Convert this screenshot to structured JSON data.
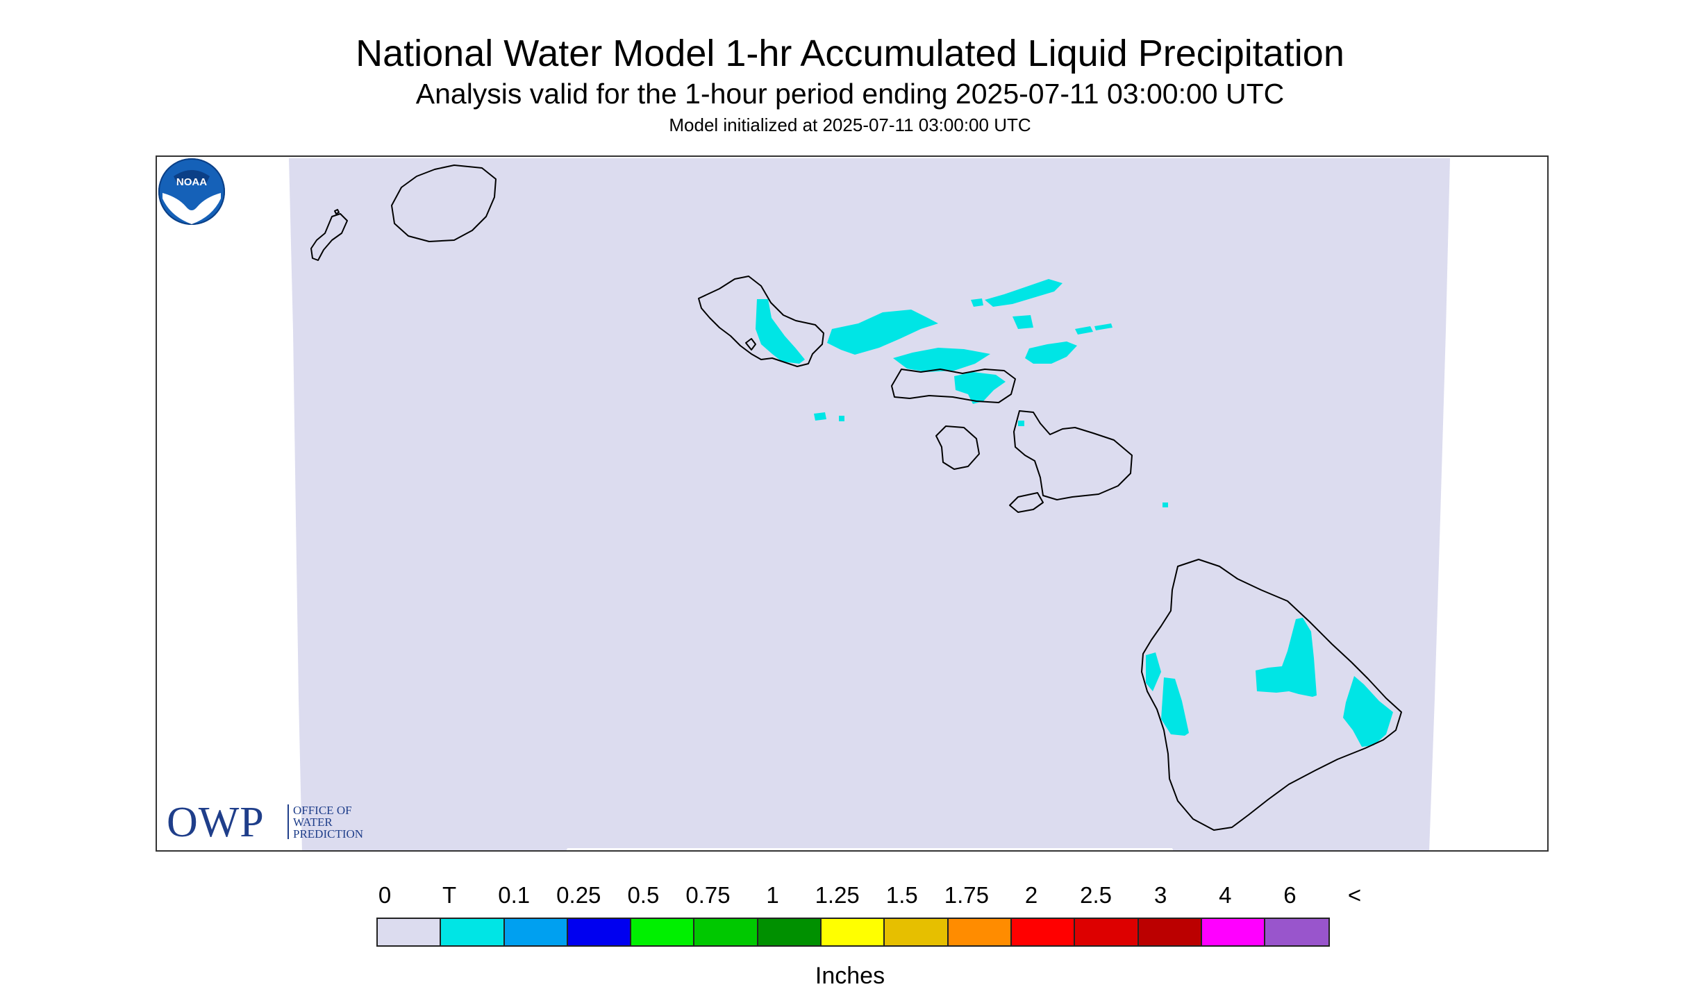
{
  "header": {
    "title": "National Water Model 1-hr Accumulated Liquid Precipitation",
    "subtitle": "Analysis valid for the 1-hour period ending 2025-07-11 03:00:00 UTC",
    "init": "Model initialized at 2025-07-11 03:00:00 UTC"
  },
  "map": {
    "domain_fill": "#dcdcef",
    "coast_color": "#000000",
    "precip_color": "#00e5e5"
  },
  "logos": {
    "owp": {
      "letters": "OWP",
      "line1": "OFFICE OF",
      "line2": "WATER",
      "line3": "PREDICTION",
      "color": "#1f3e8a"
    },
    "noaa": {
      "text": "NOAA",
      "color": "#1561b8"
    }
  },
  "legend": {
    "labels": [
      "0",
      "T",
      "0.1",
      "0.25",
      "0.5",
      "0.75",
      "1",
      "1.25",
      "1.5",
      "1.75",
      "2",
      "2.5",
      "3",
      "4",
      "6",
      "<"
    ],
    "colors": [
      "#dcdcef",
      "#00e5e5",
      "#00a0f0",
      "#0000f0",
      "#00f000",
      "#00c800",
      "#009000",
      "#ffff00",
      "#e6bf00",
      "#ff8c00",
      "#ff0000",
      "#dd0000",
      "#bb0000",
      "#ff00ff",
      "#9955cc"
    ],
    "unit": "Inches"
  }
}
